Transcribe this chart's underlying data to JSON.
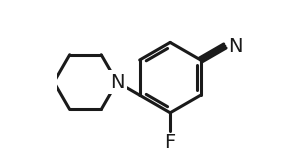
{
  "background_color": "#ffffff",
  "line_color": "#1a1a1a",
  "line_width": 2.2,
  "font_size": 14,
  "label_F": "F",
  "label_N": "N",
  "label_CN": "N",
  "fig_width": 2.88,
  "fig_height": 1.56,
  "dpi": 100
}
